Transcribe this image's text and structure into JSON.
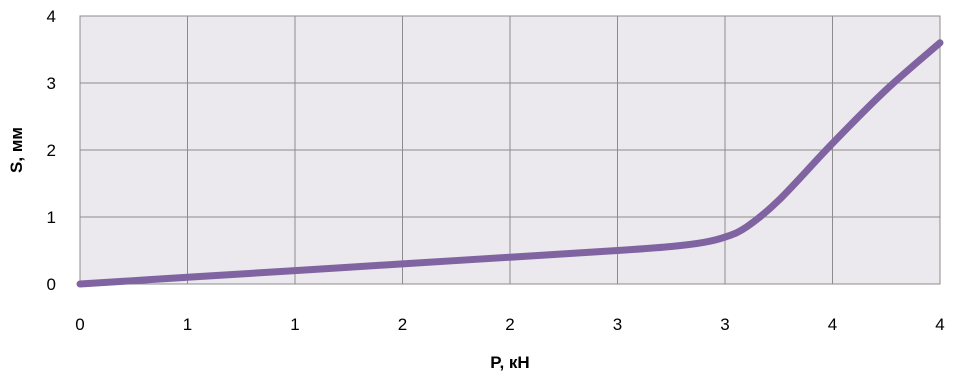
{
  "chart_data": {
    "type": "line",
    "title": "",
    "xlabel": "P, кН",
    "ylabel": "S, мм",
    "x_tick_labels": [
      "0",
      "1",
      "1",
      "2",
      "2",
      "3",
      "3",
      "4",
      "4"
    ],
    "y_tick_labels": [
      "0",
      "1",
      "2",
      "3",
      "4"
    ],
    "xlim": [
      0,
      4
    ],
    "ylim": [
      0,
      4
    ],
    "grid": true,
    "legend": "none",
    "series": [
      {
        "x": [
          0,
          0.5,
          1.0,
          1.5,
          2.0,
          2.5,
          2.75,
          2.9,
          3.0,
          3.1,
          3.25,
          3.5,
          3.75,
          4.0
        ],
        "values": [
          0.0,
          0.1,
          0.2,
          0.3,
          0.4,
          0.5,
          0.56,
          0.62,
          0.7,
          0.85,
          1.25,
          2.1,
          2.9,
          3.6
        ]
      }
    ],
    "colors": {
      "line": "#8064A2",
      "plot_background": "#EBE8EE",
      "grid": "#8C8C8C",
      "axis_text": "#000000"
    }
  }
}
